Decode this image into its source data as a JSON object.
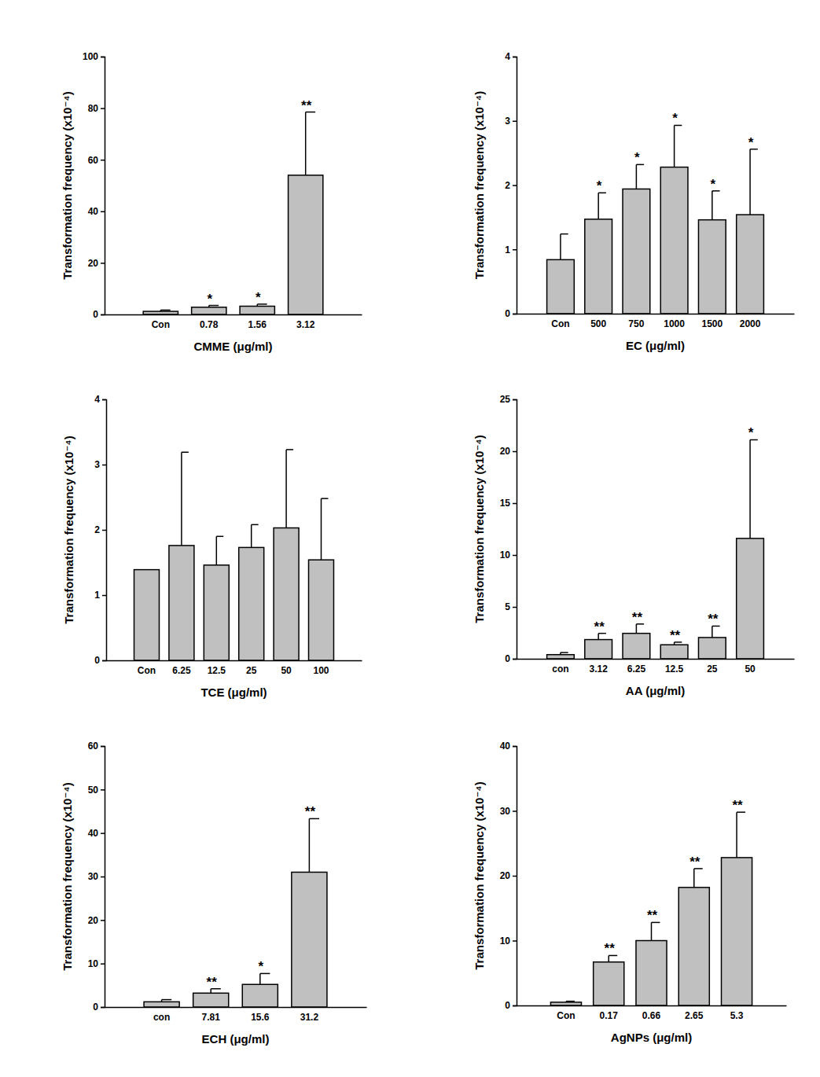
{
  "chart_data": [
    {
      "type": "bar",
      "x_label": "CMME (μg/ml)",
      "y_label": "Transformation frequency (x10⁻⁴)",
      "categories": [
        "Con",
        "0.78",
        "1.56",
        "3.12"
      ],
      "values": [
        1.2,
        2.8,
        3.2,
        54
      ],
      "errors": [
        0.5,
        0.7,
        0.8,
        24.5
      ],
      "annotations": [
        null,
        "*",
        "*",
        "**"
      ],
      "color": "#c0c0c0",
      "ylim": [
        0,
        100
      ],
      "yticks": [
        0,
        20,
        40,
        60,
        80,
        100
      ]
    },
    {
      "type": "bar",
      "x_label": "EC (μg/ml)",
      "y_label": "Transformation frequency (x10⁻⁴)",
      "categories": [
        "Con",
        "500",
        "750",
        "1000",
        "1500",
        "2000"
      ],
      "values": [
        0.84,
        1.47,
        1.94,
        2.28,
        1.46,
        1.54
      ],
      "errors": [
        0.4,
        0.41,
        0.38,
        0.65,
        0.45,
        1.02
      ],
      "annotations": [
        null,
        "*",
        "*",
        "*",
        "*",
        "*"
      ],
      "color": "#c0c0c0",
      "ylim": [
        0,
        4
      ],
      "yticks": [
        0,
        1,
        2,
        3,
        4
      ]
    },
    {
      "type": "bar",
      "x_label": "TCE (μg/ml)",
      "y_label": "Transformation frequency (x10⁻⁴)",
      "categories": [
        "Con",
        "6.25",
        "12.5",
        "25",
        "50",
        "100"
      ],
      "values": [
        1.39,
        1.76,
        1.46,
        1.73,
        2.03,
        1.54
      ],
      "errors": [
        null,
        1.43,
        0.44,
        0.35,
        1.2,
        0.94
      ],
      "color": "#c0c0c0",
      "ylim": [
        0,
        4
      ],
      "yticks": [
        0,
        1,
        2,
        3,
        4
      ]
    },
    {
      "type": "bar",
      "x_label": "AA (μg/ml)",
      "y_label": "Transformation frequency (x10⁻⁴)",
      "categories": [
        "con",
        "3.12",
        "6.25",
        "12.5",
        "25",
        "50"
      ],
      "values": [
        0.4,
        1.85,
        2.45,
        1.35,
        2.05,
        11.6
      ],
      "errors": [
        0.2,
        0.6,
        0.9,
        0.25,
        1.1,
        9.5
      ],
      "annotations": [
        null,
        "**",
        "**",
        "**",
        "**",
        "*"
      ],
      "color": "#c0c0c0",
      "ylim": [
        0,
        25
      ],
      "yticks": [
        0,
        5,
        10,
        15,
        20,
        25
      ]
    },
    {
      "type": "bar",
      "x_label": "ECH (μg/ml)",
      "y_label": "Transformation frequency (x10⁻⁴)",
      "categories": [
        "con",
        "7.81",
        "15.6",
        "31.2"
      ],
      "values": [
        1.2,
        3.2,
        5.2,
        31
      ],
      "errors": [
        0.5,
        1.0,
        2.5,
        12.3
      ],
      "annotations": [
        null,
        "**",
        "*",
        "**"
      ],
      "color": "#c0c0c0",
      "ylim": [
        0,
        60
      ],
      "yticks": [
        0,
        10,
        20,
        30,
        40,
        50,
        60
      ]
    },
    {
      "type": "bar",
      "x_label": "AgNPs (μg/ml)",
      "y_label": "Transformation frequency (x10⁻⁴)",
      "categories": [
        "Con",
        "0.17",
        "0.66",
        "2.65",
        "5.3"
      ],
      "values": [
        0.5,
        6.7,
        10,
        18.2,
        22.8
      ],
      "errors": [
        0.15,
        1.0,
        2.8,
        2.9,
        7.0
      ],
      "annotations": [
        null,
        "**",
        "**",
        "**",
        "**"
      ],
      "color": "#c0c0c0",
      "ylim": [
        0,
        40
      ],
      "yticks": [
        0,
        10,
        20,
        30,
        40
      ]
    }
  ]
}
